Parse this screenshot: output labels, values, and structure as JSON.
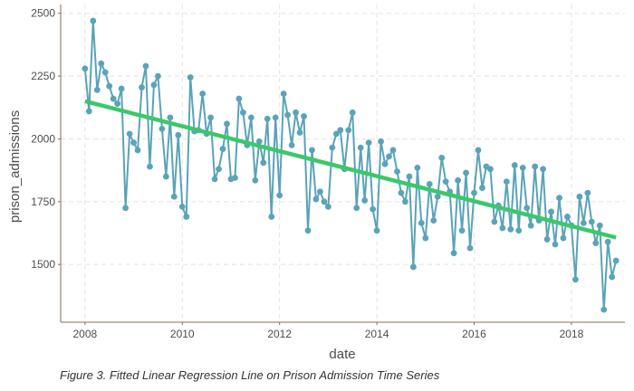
{
  "caption": "Figure 3. Fitted Linear Regression Line on Prison Admission Time Series",
  "chart_data": {
    "type": "line",
    "xlabel": "date",
    "ylabel": "prison_admissions",
    "x_ticks": [
      "2008",
      "2010",
      "2012",
      "2014",
      "2016",
      "2018"
    ],
    "y_ticks": [
      "1500",
      "1750",
      "2000",
      "2250",
      "2500"
    ],
    "xlim": [
      2007.5,
      2019.1
    ],
    "ylim": [
      1270,
      2535
    ],
    "grid": true,
    "colors": {
      "series": "#5aa3b8",
      "fit": "#3cc86a",
      "axis": "#8b6b55",
      "grid": "#e3e3e3"
    },
    "series": [
      {
        "type": "line+points",
        "x_start": "2008-01",
        "frequency": "monthly",
        "values": [
          2280,
          2110,
          2470,
          2195,
          2300,
          2265,
          2210,
          2160,
          2140,
          2200,
          1725,
          2020,
          1985,
          1955,
          2205,
          2290,
          1890,
          2215,
          2250,
          2040,
          1850,
          2085,
          1770,
          2015,
          1730,
          1690,
          2245,
          2030,
          2035,
          2180,
          2020,
          2085,
          1840,
          1880,
          1960,
          2060,
          1840,
          1845,
          2160,
          2105,
          1975,
          2085,
          1835,
          1990,
          1905,
          2080,
          1690,
          2085,
          1775,
          2180,
          2095,
          1975,
          2105,
          2025,
          2090,
          1635,
          1955,
          1760,
          1790,
          1750,
          1730,
          1965,
          2020,
          2035,
          1880,
          2035,
          2105,
          1725,
          1965,
          1755,
          1985,
          1720,
          1635,
          1990,
          1900,
          1930,
          1955,
          1870,
          1785,
          1750,
          1850,
          1490,
          1885,
          1665,
          1605,
          1820,
          1675,
          1770,
          1925,
          1830,
          1790,
          1545,
          1835,
          1635,
          1865,
          1565,
          1785,
          1955,
          1805,
          1890,
          1880,
          1670,
          1735,
          1645,
          1830,
          1640,
          1895,
          1635,
          1885,
          1725,
          1655,
          1890,
          1675,
          1880,
          1600,
          1710,
          1580,
          1765,
          1605,
          1690,
          1655,
          1440,
          1770,
          1665,
          1785,
          1670,
          1585,
          1655,
          1320,
          1590,
          1450,
          1515
        ]
      },
      {
        "type": "fit-line",
        "x": [
          2008.0,
          2018.917
        ],
        "values": [
          2150,
          1607
        ]
      }
    ]
  }
}
